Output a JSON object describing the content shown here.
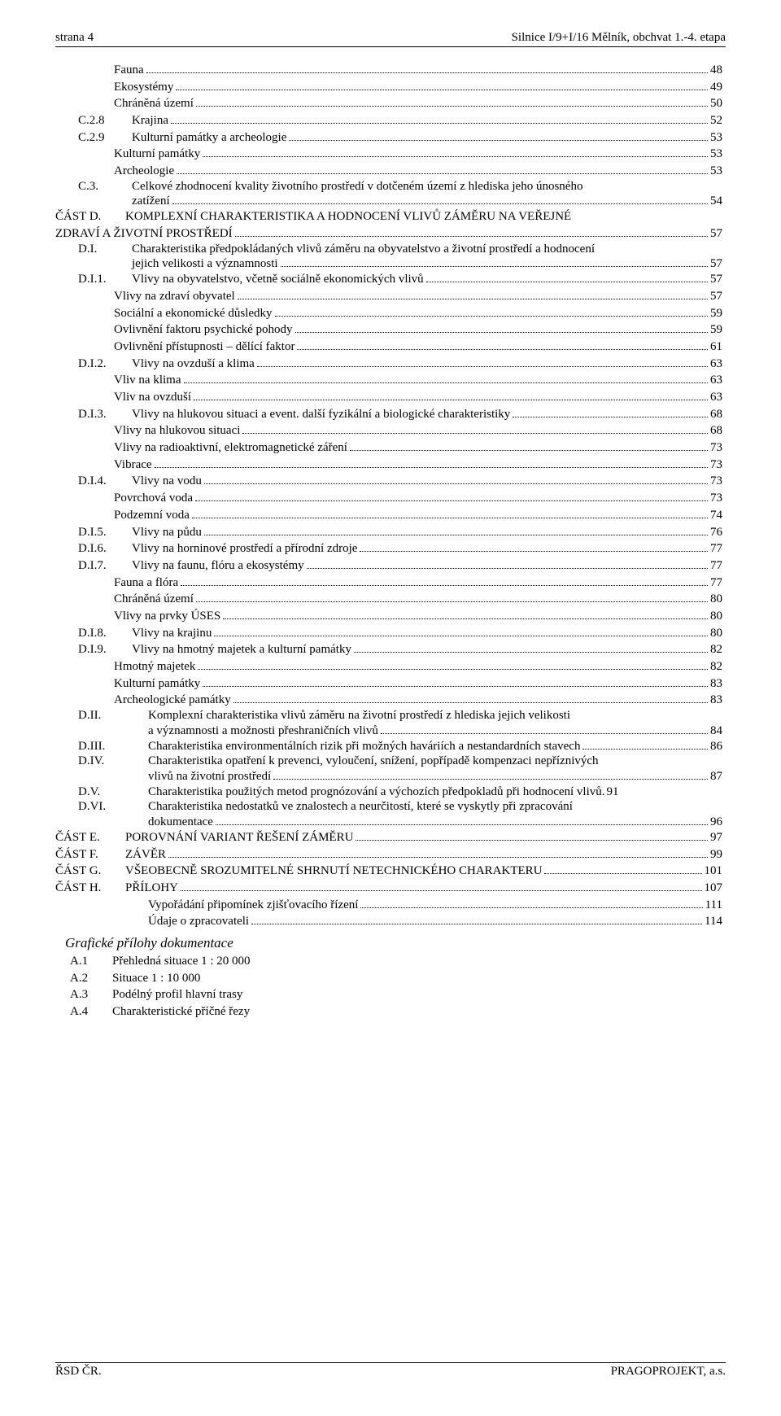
{
  "header": {
    "left": "strana 4",
    "right": "Silnice I/9+I/16 Mělník, obchvat 1.-4. etapa"
  },
  "footer": {
    "left": "ŘSD ČR.",
    "right": "PRAGOPROJEKT, a.s."
  },
  "toc_top": [
    {
      "style": "lvl-sub",
      "label": "Fauna",
      "page": "48"
    },
    {
      "style": "lvl-sub",
      "label": "Ekosystémy",
      "page": "49"
    },
    {
      "style": "lvl-sub",
      "label": "Chráněná území",
      "page": "50"
    },
    {
      "style": "lvl-a",
      "num": "C.2.8",
      "label": "Krajina",
      "page": "52"
    },
    {
      "style": "lvl-a",
      "num": "C.2.9",
      "label": "Kulturní památky a archeologie",
      "page": "53"
    },
    {
      "style": "lvl-sub",
      "label": "Kulturní památky",
      "page": "53"
    },
    {
      "style": "lvl-sub",
      "label": "Archeologie",
      "page": "53"
    }
  ],
  "c3": {
    "num": "C.3.",
    "line1": "Celkové zhodnocení kvality životního prostředí v dotčeném území z hlediska jeho únosného",
    "line2": "zatížení",
    "page": "54"
  },
  "castD": {
    "num": "ČÁST D.",
    "label": "KOMPLEXNÍ CHARAKTERISTIKA A HODNOCENÍ VLIVŮ ZÁMĚRU NA VEŘEJNÉ"
  },
  "castD2": {
    "label": "ZDRAVÍ A ŽIVOTNÍ PROSTŘEDÍ",
    "page": "57"
  },
  "di": {
    "num": "D.I.",
    "line1": "Charakteristika předpokládaných vlivů záměru na obyvatelstvo a životní prostředí a hodnocení",
    "line2": "jejich velikosti a významnosti",
    "page": "57"
  },
  "toc_mid": [
    {
      "style": "lvl-di",
      "num": "D.I.1.",
      "label": "Vlivy na obyvatelstvo, včetně sociálně ekonomických vlivů",
      "page": "57"
    },
    {
      "style": "lvl-sub",
      "label": "Vlivy na zdraví obyvatel",
      "page": "57"
    },
    {
      "style": "lvl-sub",
      "label": "Sociální a ekonomické důsledky",
      "page": "59"
    },
    {
      "style": "lvl-sub",
      "label": "Ovlivnění faktoru psychické pohody",
      "page": "59"
    },
    {
      "style": "lvl-sub",
      "label": "Ovlivnění přístupnosti – dělící faktor",
      "page": "61"
    },
    {
      "style": "lvl-di",
      "num": "D.I.2.",
      "label": "Vlivy na ovzduší a klima",
      "page": "63"
    },
    {
      "style": "lvl-sub",
      "label": "Vliv na klima",
      "page": "63"
    },
    {
      "style": "lvl-sub",
      "label": "Vliv na ovzduší",
      "page": "63"
    },
    {
      "style": "lvl-di",
      "num": "D.I.3.",
      "label": "Vlivy na hlukovou situaci a event. další fyzikální a biologické charakteristiky",
      "page": "68"
    },
    {
      "style": "lvl-sub",
      "label": "Vlivy na hlukovou situaci",
      "page": "68"
    },
    {
      "style": "lvl-sub",
      "label": "Vlivy na radioaktivní, elektromagnetické záření",
      "page": "73"
    },
    {
      "style": "lvl-sub",
      "label": "Vibrace",
      "page": "73"
    },
    {
      "style": "lvl-di",
      "num": "D.I.4.",
      "label": "Vlivy na vodu",
      "page": "73"
    },
    {
      "style": "lvl-sub",
      "label": "Povrchová voda",
      "page": "73"
    },
    {
      "style": "lvl-sub",
      "label": "Podzemní voda",
      "page": "74"
    },
    {
      "style": "lvl-di",
      "num": "D.I.5.",
      "label": "Vlivy na půdu",
      "page": "76"
    },
    {
      "style": "lvl-di",
      "num": "D.I.6.",
      "label": "Vlivy na horninové prostředí a přírodní zdroje",
      "page": "77"
    },
    {
      "style": "lvl-di",
      "num": "D.I.7.",
      "label": "Vlivy na faunu, flóru a ekosystémy",
      "page": "77"
    },
    {
      "style": "lvl-sub",
      "label": "Fauna a flóra",
      "page": "77"
    },
    {
      "style": "lvl-sub",
      "label": "Chráněná území",
      "page": "80"
    },
    {
      "style": "lvl-sub",
      "label": "Vlivy na prvky ÚSES",
      "page": "80"
    },
    {
      "style": "lvl-di",
      "num": "D.I.8.",
      "label": "Vlivy na krajinu",
      "page": "80"
    },
    {
      "style": "lvl-di",
      "num": "D.I.9.",
      "label": "Vlivy na hmotný majetek a kulturní památky",
      "page": "82"
    },
    {
      "style": "lvl-sub",
      "label": "Hmotný majetek",
      "page": "82"
    },
    {
      "style": "lvl-sub",
      "label": "Kulturní památky",
      "page": "83"
    },
    {
      "style": "lvl-sub",
      "label": "Archeologické památky",
      "page": "83"
    }
  ],
  "dii": {
    "num": "D.II.",
    "line1": "Komplexní charakteristika vlivů záměru na životní prostředí z hlediska jejich velikosti",
    "line2": "a významnosti a možnosti přeshraničních vlivů",
    "page": "84"
  },
  "diii": {
    "num": "D.III.",
    "label": "Charakteristika environmentálních rizik při možných haváriích a nestandardních stavech",
    "page": "86"
  },
  "div": {
    "num": "D.IV.",
    "line1": "Charakteristika opatření k prevenci, vyloučení, snížení, popřípadě kompenzaci nepříznivých",
    "line2": "vlivů na životní prostředí",
    "page": "87"
  },
  "dv": {
    "num": "D.V.",
    "label": "Charakteristika použitých metod prognózování a výchozích předpokladů při hodnocení vlivů.",
    "page": "91"
  },
  "dvi": {
    "num": "D.VI.",
    "line1": "Charakteristika nedostatků ve znalostech a neurčitostí, které se vyskytly při zpracování",
    "line2": "dokumentace",
    "page": "96"
  },
  "parts": [
    {
      "num": "ČÁST E.",
      "label": "POROVNÁNÍ VARIANT ŘEŠENÍ ZÁMĚRU",
      "page": "97"
    },
    {
      "num": "ČÁST F.",
      "label": "ZÁVĚR",
      "page": "99"
    },
    {
      "num": "ČÁST G.",
      "label": "VŠEOBECNĚ SROZUMITELNÉ SHRNUTÍ NETECHNICKÉHO CHARAKTERU",
      "page": "101"
    },
    {
      "num": "ČÁST H.",
      "label": "PŘÍLOHY",
      "page": "107"
    }
  ],
  "toc_tail": [
    {
      "style": "lvl-sub2",
      "label": "Vypořádání připomínek zjišťovacího řízení",
      "page": "111"
    },
    {
      "style": "lvl-sub2",
      "label": "Údaje o zpracovateli",
      "page": "114"
    }
  ],
  "graficke_title": "Grafické přílohy dokumentace",
  "appendix": [
    {
      "num": "A.1",
      "label": "Přehledná situace  1 : 20 000"
    },
    {
      "num": "A.2",
      "label": "Situace 1 : 10 000"
    },
    {
      "num": "A.3",
      "label": "Podélný profil hlavní trasy"
    },
    {
      "num": "A.4",
      "label": "Charakteristické příčné řezy"
    }
  ]
}
